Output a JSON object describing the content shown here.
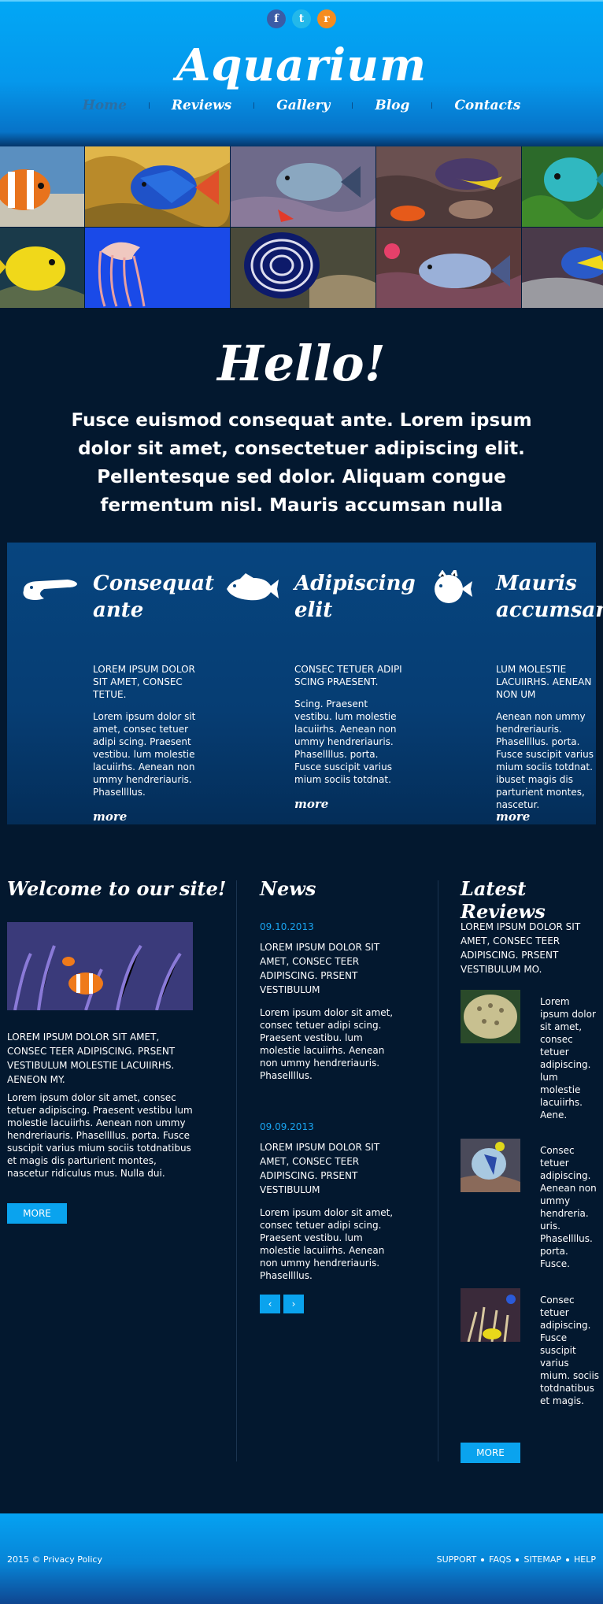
{
  "header": {
    "social": [
      {
        "icon": "facebook-icon",
        "glyph": "f"
      },
      {
        "icon": "twitter-icon",
        "glyph": "t"
      },
      {
        "icon": "rss-icon",
        "glyph": "r"
      }
    ],
    "logo": "Aquarium",
    "nav": [
      "Home",
      "Reviews",
      "Gallery",
      "Blog",
      "Contacts"
    ],
    "active_nav": "Home"
  },
  "hello": {
    "title": "Hello!",
    "intro": "Fusce euismod consequat ante. Lorem ipsum dolor sit amet, consectetuer adipiscing elit. Pellentesque sed dolor. Aliquam congue fermentum nisl. Mauris accumsan nulla"
  },
  "features": [
    {
      "title": "Consequat ante",
      "caps": "LOREM IPSUM DOLOR SIT AMET, CONSEC TETUE.",
      "text": "Lorem ipsum dolor sit amet, consec tetuer adipi scing. Praesent vestibu. lum molestie lacuiirhs. Aenean non ummy hendreriauris. Phasellllus.",
      "more": "more",
      "icon": "eel-icon"
    },
    {
      "title": "Adipiscing elit",
      "caps": "CONSEC TETUER ADIPI SCING PRAESENT.",
      "text": "Scing. Praesent vestibu. lum molestie lacuiirhs. Aenean non ummy hendreriauris. Phasellllus. porta. Fusce suscipit varius mium sociis totdnat.",
      "more": "more",
      "icon": "grouper-icon"
    },
    {
      "title": "Mauris accumsan",
      "caps": "LUM MOLESTIE LACUIIRHS. AENEAN NON UM",
      "text": "Aenean non ummy hendreriauris. Phasellllus. porta. Fusce suscipit varius mium sociis totdnat. ibuset magis dis parturient montes, nascetur.",
      "more": "more",
      "icon": "puffer-icon"
    }
  ],
  "welcome": {
    "heading": "Welcome to our site!",
    "caps": "LOREM IPSUM DOLOR SIT AMET, CONSEC TEER ADIPISCING. PRSENT VESTIBULUM MOLESTIE LACUIIRHS. AENEON MY.",
    "text": "Lorem ipsum dolor sit amet, consec tetuer adipiscing. Praesent vestibu lum molestie lacuiirhs. Aenean non ummy hendreriauris. Phasellllus. porta. Fusce suscipit varius mium sociis totdnatibus et magis dis parturient montes, nascetur ridiculus mus. Nulla dui.",
    "button": "MORE"
  },
  "news": {
    "heading": "News",
    "items": [
      {
        "date": "09.10.2013",
        "caps": "LOREM IPSUM DOLOR SIT AMET, CONSEC TEER ADIPISCING. PRSENT VESTIBULUM",
        "text": "Lorem ipsum dolor sit amet, consec tetuer adipi scing. Praesent vestibu. lum molestie lacuiirhs. Aenean non ummy hendreriauris. Phasellllus."
      },
      {
        "date": "09.09.2013",
        "caps": "LOREM IPSUM DOLOR SIT AMET, CONSEC TEER ADIPISCING. PRSENT VESTIBULUM",
        "text": "Lorem ipsum dolor sit amet, consec tetuer adipi scing. Praesent vestibu. lum molestie lacuiirhs. Aenean non ummy hendreriauris. Phasellllus."
      }
    ],
    "prev": "‹",
    "next": "›"
  },
  "reviews": {
    "heading": "Latest Reviews",
    "caps": "LOREM IPSUM DOLOR SIT AMET, CONSEC TEER ADIPISCING. PRSENT VESTIBULUM MO.",
    "items": [
      {
        "text": "Lorem ipsum dolor sit amet, consec tetuer adipiscing. lum molestie lacuiirhs. Aene."
      },
      {
        "text": "Consec tetuer adipiscing. Aenean non ummy hendreria. uris. Phasellllus. porta. Fusce."
      },
      {
        "text": "Consec tetuer adipiscing. Fusce suscipit varius mium. sociis totdnatibus et magis."
      }
    ],
    "button": "MORE"
  },
  "footer": {
    "copyright": "2015 © Privacy Policy",
    "links": [
      "SUPPORT",
      "FAQS",
      "SITEMAP",
      "HELP"
    ]
  },
  "colors": {
    "accent": "#0aa3ee",
    "background": "#03182f",
    "panel": "#07457f",
    "date": "#1aa6f2"
  }
}
